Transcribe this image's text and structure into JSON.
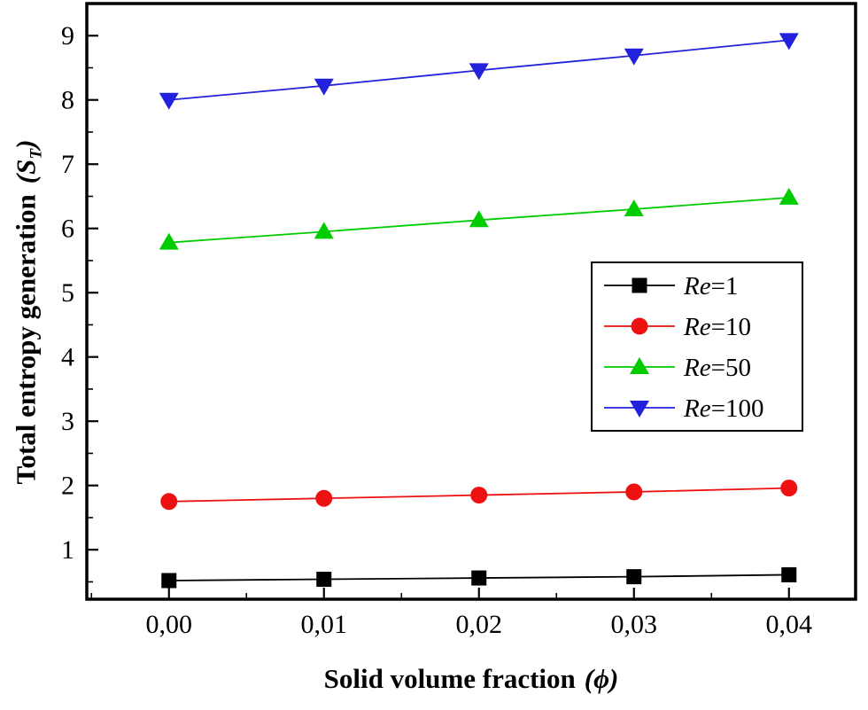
{
  "chart_data": {
    "type": "line",
    "title": "",
    "xlabel_text": "Solid volume fraction",
    "xlabel_symbol": "(ϕ)",
    "ylabel_text": "Total entropy generation",
    "ylabel_symbol_open": "(S",
    "ylabel_symbol_sub": "T",
    "ylabel_symbol_close": ")",
    "x": [
      0.0,
      0.01,
      0.02,
      0.03,
      0.04
    ],
    "x_tick_labels": [
      "0,00",
      "0,01",
      "0,02",
      "0,03",
      "0,04"
    ],
    "y_ticks": [
      1,
      2,
      3,
      4,
      5,
      6,
      7,
      8,
      9
    ],
    "y_tick_labels": [
      "1",
      "2",
      "3",
      "4",
      "5",
      "6",
      "7",
      "8",
      "9"
    ],
    "xlim": [
      -0.0053,
      0.0443
    ],
    "ylim": [
      0.23,
      9.5
    ],
    "x_minor_step": 0.005,
    "y_minor_step": 0.5,
    "grid": false,
    "legend_position": "middle-right",
    "axis_color": "#000000",
    "series": [
      {
        "name_prefix": "Re",
        "name_suffix": "=1",
        "color": "#000000",
        "marker": "square",
        "values": [
          0.52,
          0.54,
          0.56,
          0.58,
          0.61
        ]
      },
      {
        "name_prefix": "Re",
        "name_suffix": "=10",
        "color": "#ee1111",
        "marker": "circle",
        "values": [
          1.75,
          1.8,
          1.85,
          1.9,
          1.96
        ]
      },
      {
        "name_prefix": "Re",
        "name_suffix": "=50",
        "color": "#00cc00",
        "marker": "triangle-up",
        "values": [
          5.78,
          5.95,
          6.13,
          6.3,
          6.48
        ]
      },
      {
        "name_prefix": "Re",
        "name_suffix": "=100",
        "color": "#2222dd",
        "marker": "triangle-down",
        "values": [
          8.0,
          8.22,
          8.46,
          8.69,
          8.93
        ]
      }
    ]
  }
}
